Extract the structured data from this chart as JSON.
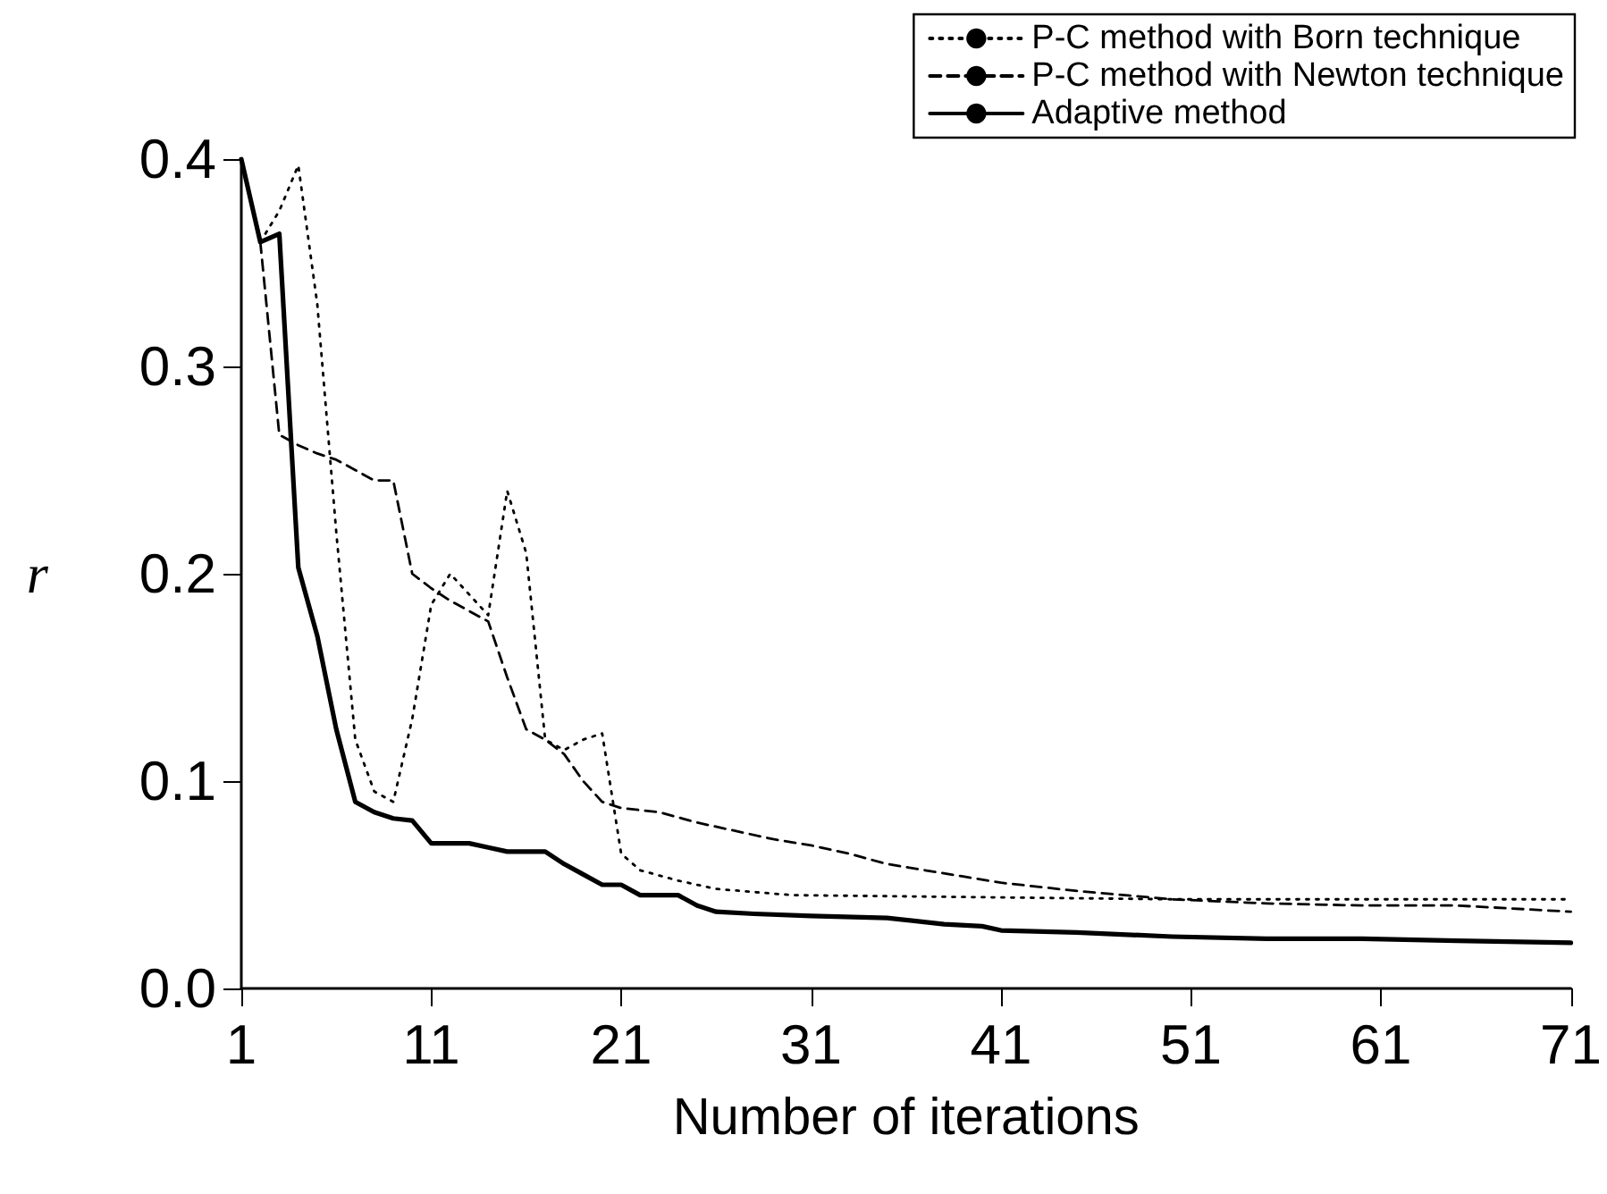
{
  "chart_data": {
    "type": "line",
    "xlabel": "Number of iterations",
    "ylabel": "r",
    "xlim": [
      1,
      71
    ],
    "xticks": [
      1,
      11,
      21,
      31,
      41,
      51,
      61,
      71
    ],
    "ylim": [
      0,
      0.4
    ],
    "yticks": [
      {
        "value": 0,
        "label": "0.0"
      },
      0.1,
      0.2,
      0.3,
      0.4
    ],
    "grid": false,
    "legend": "top right",
    "marker": "none",
    "series": [
      {
        "name": "P-C method with Born technique",
        "color": "#000000",
        "line_style": "dotted",
        "x": [
          2,
          3,
          4,
          5,
          6,
          7,
          8,
          9,
          10,
          11,
          12,
          13,
          14,
          15,
          16,
          17,
          18,
          19,
          20,
          21,
          22,
          24,
          26,
          30,
          40,
          50,
          71
        ],
        "values": [
          0.36,
          0.375,
          0.397,
          0.33,
          0.22,
          0.12,
          0.095,
          0.09,
          0.13,
          0.185,
          0.2,
          0.19,
          0.18,
          0.24,
          0.21,
          0.12,
          0.115,
          0.12,
          0.123,
          0.065,
          0.057,
          0.052,
          0.048,
          0.045,
          0.044,
          0.043,
          0.043
        ]
      },
      {
        "name": "P-C method with Newton technique",
        "color": "#000000",
        "line_style": "dashed",
        "x": [
          2,
          3,
          4,
          5,
          6,
          7,
          8,
          9,
          10,
          11,
          12,
          13,
          14,
          15,
          16,
          17,
          18,
          19,
          20,
          21,
          23,
          25,
          27,
          29,
          31,
          33,
          35,
          37,
          39,
          41,
          45,
          50,
          55,
          60,
          65,
          71
        ],
        "values": [
          0.36,
          0.267,
          0.262,
          0.258,
          0.255,
          0.25,
          0.245,
          0.245,
          0.2,
          0.193,
          0.187,
          0.182,
          0.177,
          0.15,
          0.125,
          0.12,
          0.113,
          0.1,
          0.09,
          0.087,
          0.085,
          0.08,
          0.076,
          0.072,
          0.069,
          0.065,
          0.06,
          0.057,
          0.054,
          0.051,
          0.047,
          0.043,
          0.041,
          0.04,
          0.04,
          0.037
        ]
      },
      {
        "name": "Adaptive method",
        "color": "#000000",
        "line_style": "solid",
        "x": [
          1,
          2,
          3,
          4,
          5,
          6,
          7,
          8,
          9,
          10,
          11,
          12,
          13,
          14,
          15,
          16,
          17,
          18,
          19,
          20,
          21,
          22,
          23,
          24,
          25,
          26,
          28,
          31,
          35,
          38,
          40,
          41,
          45,
          50,
          55,
          60,
          65,
          71
        ],
        "values": [
          0.4,
          0.36,
          0.364,
          0.203,
          0.17,
          0.125,
          0.09,
          0.085,
          0.082,
          0.081,
          0.07,
          0.07,
          0.07,
          0.068,
          0.066,
          0.066,
          0.066,
          0.06,
          0.055,
          0.05,
          0.05,
          0.045,
          0.045,
          0.045,
          0.04,
          0.037,
          0.036,
          0.035,
          0.034,
          0.031,
          0.03,
          0.028,
          0.027,
          0.025,
          0.024,
          0.024,
          0.023,
          0.022
        ]
      }
    ]
  }
}
